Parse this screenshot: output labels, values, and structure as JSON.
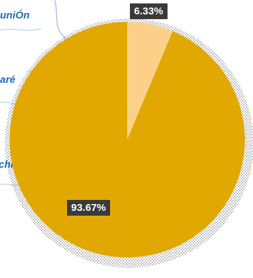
{
  "map_labels": [
    "uniÓn",
    "aré",
    "chi"
  ],
  "chart_data": {
    "type": "pie",
    "title": "",
    "slices": [
      {
        "value": 6.33,
        "label": "6.33%",
        "color": "#fdd08a"
      },
      {
        "value": 93.67,
        "label": "93.67%",
        "color": "#e0a800"
      }
    ],
    "start_angle_deg": 0,
    "direction": "clockwise",
    "legend": "none"
  }
}
